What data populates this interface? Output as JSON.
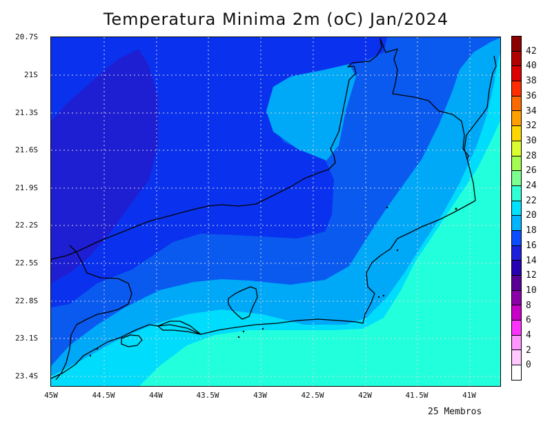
{
  "title": "Temperatura Minima 2m (oC) Jan/2024",
  "footer": "25 Membros",
  "lat_labels": [
    "20.7S",
    "21S",
    "21.3S",
    "21.6S",
    "21.9S",
    "22.2S",
    "22.5S",
    "22.8S",
    "23.1S",
    "23.4S"
  ],
  "lon_labels": [
    "45W",
    "44.5W",
    "44W",
    "43.5W",
    "43W",
    "42.5W",
    "42W",
    "41.5W",
    "41W"
  ],
  "colorbar": {
    "labels": [
      "42",
      "40",
      "38",
      "36",
      "34",
      "32",
      "30",
      "28",
      "26",
      "24",
      "22",
      "20",
      "18",
      "16",
      "14",
      "12",
      "10",
      "8",
      "6",
      "4",
      "2",
      "0"
    ],
    "colors": [
      "#8b0000",
      "#b00000",
      "#dc0000",
      "#ff2d00",
      "#ff6a00",
      "#ffa000",
      "#ffd700",
      "#dcfc30",
      "#a4fc50",
      "#7bff90",
      "#30ffd7",
      "#00e0ff",
      "#00b4ff",
      "#0a4cff",
      "#1e1edc",
      "#2800b4",
      "#5a0096",
      "#8c00aa",
      "#c800c8",
      "#ff32ff",
      "#ff96ff",
      "#ffc8ff",
      "#ffffff"
    ]
  },
  "field_colors": {
    "t14_16": "#1e1ed2",
    "t16_18": "#0a32ee",
    "t18_20": "#0a5af0",
    "t20_22": "#00a8f8",
    "t22_24": "#00dcfc",
    "t24_26": "#22ffdc"
  }
}
